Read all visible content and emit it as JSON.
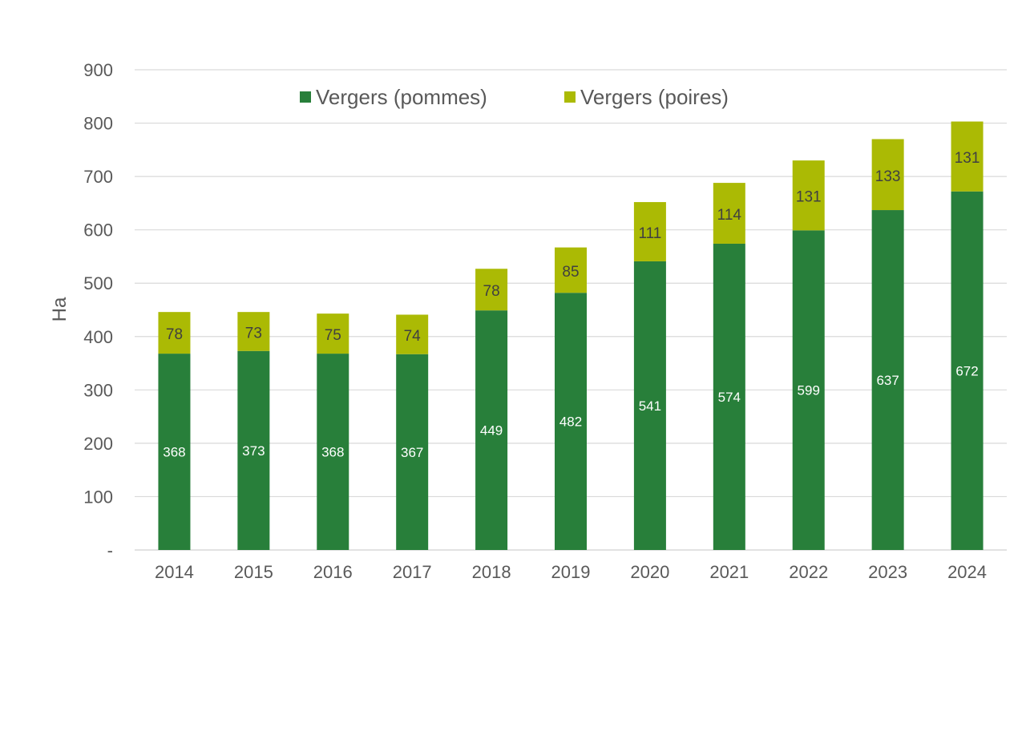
{
  "chart_data": {
    "type": "bar",
    "stacked": true,
    "categories": [
      "2014",
      "2015",
      "2016",
      "2017",
      "2018",
      "2019",
      "2020",
      "2021",
      "2022",
      "2023",
      "2024"
    ],
    "series": [
      {
        "name": "Vergers (pommes)",
        "color": "#287F3A",
        "label_color": "#ffffff",
        "values": [
          368,
          373,
          368,
          367,
          449,
          482,
          541,
          574,
          599,
          637,
          672
        ]
      },
      {
        "name": "Vergers (poires)",
        "color": "#ABBA04",
        "label_color": "#404040",
        "values": [
          78,
          73,
          75,
          74,
          78,
          85,
          111,
          114,
          131,
          133,
          131
        ]
      }
    ],
    "title": "",
    "xlabel": "",
    "ylabel": "Ha",
    "ylim": [
      0,
      900
    ],
    "yticks": [
      0,
      100,
      200,
      300,
      400,
      500,
      600,
      700,
      800,
      900
    ],
    "ytick_labels": [
      "-",
      "100",
      "200",
      "300",
      "400",
      "500",
      "600",
      "700",
      "800",
      "900"
    ],
    "grid": true,
    "legend_position": "top-center"
  },
  "colors": {
    "grid": "#D9D9D9",
    "axis_text": "#595959"
  }
}
